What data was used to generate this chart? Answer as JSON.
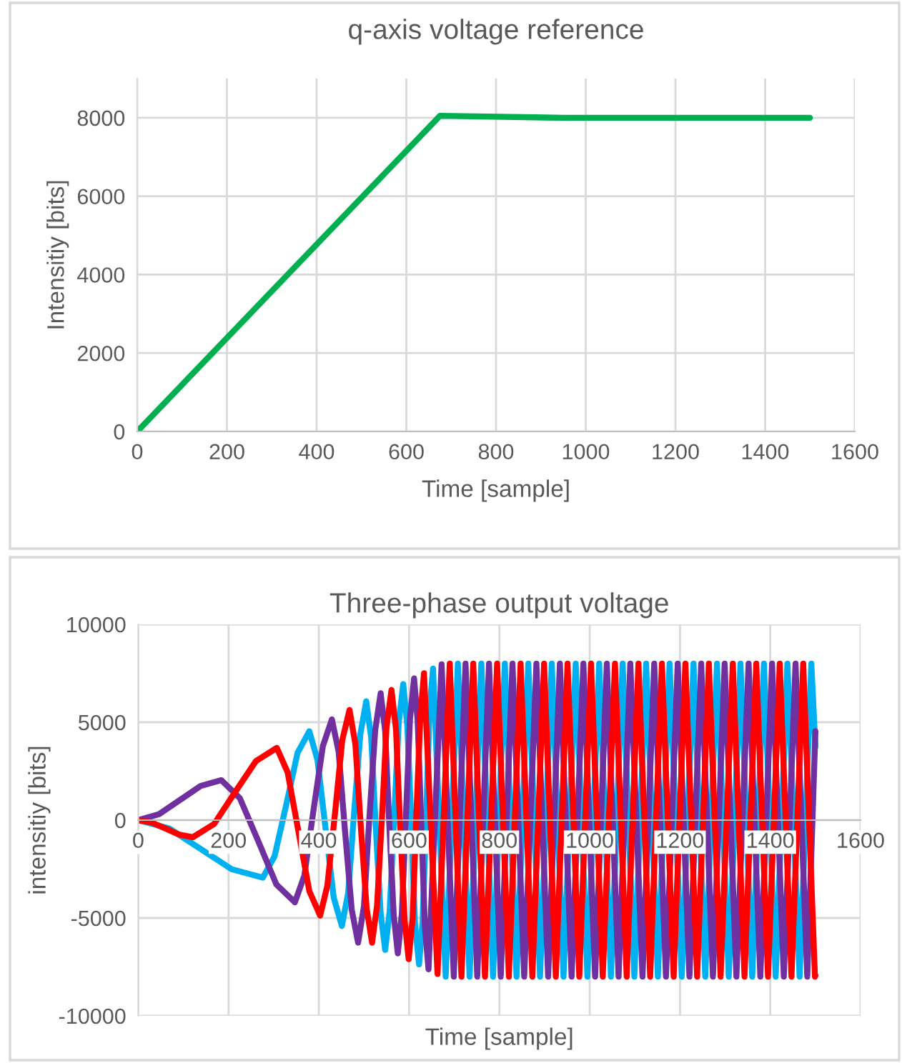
{
  "chart_data": [
    {
      "type": "line",
      "title": "q-axis voltage reference",
      "xlabel": "Time [sample]",
      "ylabel": "Intensitiy [bits]",
      "xlim": [
        0,
        1600
      ],
      "xticks": [
        0,
        200,
        400,
        600,
        800,
        1000,
        1200,
        1400,
        1600
      ],
      "ylim": [
        0,
        9000
      ],
      "yticks": [
        0,
        2000,
        4000,
        6000,
        8000
      ],
      "grid": true,
      "marker": "none",
      "line_style": "solid",
      "series": [
        {
          "color": "#00b050",
          "x": [
            0,
            675,
            950,
            1500
          ],
          "values": [
            0,
            8050,
            8000,
            8000
          ]
        }
      ]
    },
    {
      "type": "line",
      "title": "Three-phase output voltage",
      "xlabel": "Time [sample]",
      "ylabel": "intensitiy [bits]",
      "xlim": [
        0,
        1600
      ],
      "xticks": [
        0,
        200,
        400,
        600,
        800,
        1000,
        1200,
        1400,
        1600
      ],
      "ylim": [
        -10000,
        10000
      ],
      "yticks": [
        -10000,
        -5000,
        0,
        5000,
        10000
      ],
      "grid": true,
      "marker": "none",
      "line_style": "solid",
      "series": [
        {
          "color": "#00b0f0",
          "x": [
            0,
            69,
            138,
            207,
            276,
            302,
            328,
            353,
            379,
            397,
            415,
            433,
            451,
            465,
            478,
            492,
            505,
            516,
            526,
            537,
            547,
            557,
            567,
            577,
            587,
            596,
            605,
            613,
            622,
            630,
            638,
            645,
            653,
            681,
            708,
            734,
            760,
            786,
            812,
            838,
            864,
            890,
            916,
            942,
            969,
            995,
            1021,
            1047,
            1073,
            1099,
            1125,
            1151,
            1177,
            1204,
            1230,
            1256,
            1282,
            1308,
            1334,
            1360,
            1386,
            1412,
            1438,
            1465,
            1491,
            1500
          ],
          "values": [
            0,
            -431,
            -1470,
            -2509,
            -2940,
            -1844,
            800,
            3444,
            4540,
            3082,
            -435,
            -3952,
            -5410,
            -3728,
            330,
            4388,
            6070,
            4210,
            -280,
            -4770,
            -6630,
            -4640,
            160,
            4960,
            6950,
            4852,
            -210,
            -5272,
            -7370,
            -5156,
            185,
            5526,
            7740,
            -8000,
            8000,
            -8000,
            8000,
            -8000,
            8000,
            -8000,
            8000,
            -8000,
            8000,
            -8000,
            8000,
            -8000,
            8000,
            -8000,
            8000,
            -8000,
            8000,
            -8000,
            8000,
            -8000,
            8000,
            -8000,
            8000,
            -8000,
            8000,
            -8000,
            8000,
            -8000,
            8000,
            -8000,
            8000,
            3740
          ]
        },
        {
          "color": "#7030a0",
          "x": [
            0,
            46,
            92,
            138,
            184,
            225,
            266,
            306,
            347,
            368,
            388,
            409,
            429,
            444,
            458,
            473,
            487,
            500,
            512,
            525,
            537,
            547,
            556,
            566,
            575,
            584,
            593,
            602,
            611,
            619,
            627,
            635,
            643,
            672,
            699,
            725,
            751,
            777,
            803,
            829,
            855,
            882,
            908,
            934,
            960,
            986,
            1012,
            1038,
            1064,
            1090,
            1117,
            1143,
            1169,
            1195,
            1221,
            1247,
            1273,
            1299,
            1325,
            1352,
            1378,
            1404,
            1430,
            1456,
            1482,
            1500
          ],
          "values": [
            0,
            299,
            1020,
            1741,
            2040,
            1126,
            -1080,
            -3286,
            -4200,
            -2830,
            475,
            3780,
            5150,
            3478,
            -555,
            -4588,
            -6260,
            -4394,
            110,
            4614,
            6480,
            4533,
            -165,
            -4863,
            -6810,
            -4752,
            215,
            5182,
            7240,
            5063,
            -190,
            -5443,
            -7620,
            7960,
            -8000,
            8000,
            -8000,
            8000,
            -8000,
            8000,
            -8000,
            8000,
            -8000,
            8000,
            -8000,
            8000,
            -8000,
            8000,
            -8000,
            8000,
            -8000,
            8000,
            -8000,
            8000,
            -8000,
            8000,
            -8000,
            8000,
            -8000,
            8000,
            -8000,
            8000,
            -8000,
            8000,
            -8000,
            4540
          ]
        },
        {
          "color": "#ff0000",
          "x": [
            0,
            30,
            61,
            91,
            121,
            168,
            214,
            261,
            307,
            331,
            355,
            379,
            403,
            419,
            436,
            452,
            468,
            481,
            493,
            506,
            518,
            529,
            540,
            550,
            561,
            571,
            580,
            590,
            599,
            608,
            616,
            625,
            633,
            663,
            690,
            716,
            742,
            768,
            795,
            821,
            847,
            873,
            899,
            925,
            951,
            977,
            1003,
            1029,
            1056,
            1082,
            1108,
            1134,
            1160,
            1186,
            1212,
            1238,
            1264,
            1290,
            1317,
            1343,
            1369,
            1395,
            1421,
            1447,
            1473,
            1499,
            1500
          ],
          "values": [
            0,
            -127,
            -435,
            -743,
            -870,
            -202,
            1410,
            3022,
            3690,
            2435,
            -595,
            -3625,
            -4880,
            -3340,
            375,
            4090,
            5630,
            3888,
            -315,
            -4518,
            -6260,
            -4369,
            195,
            4759,
            6650,
            4636,
            -225,
            -5086,
            -7100,
            -4961,
            200,
            5361,
            7500,
            -7860,
            8000,
            -8000,
            8000,
            -8000,
            8000,
            -8000,
            8000,
            -8000,
            8000,
            -8000,
            8000,
            -8000,
            8000,
            -8000,
            8000,
            -8000,
            8000,
            -8000,
            8000,
            -8000,
            8000,
            -8000,
            8000,
            -8000,
            8000,
            -8000,
            8000,
            -8000,
            8000,
            -8000,
            8000,
            -8000,
            -7940
          ]
        }
      ]
    }
  ]
}
